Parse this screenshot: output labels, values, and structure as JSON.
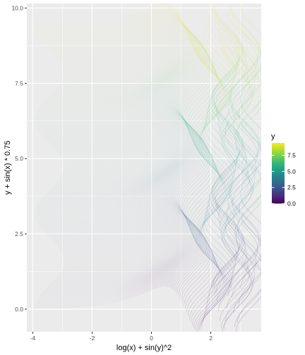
{
  "chart_data": {
    "type": "line",
    "description_of_marks": "many curves x = log(x0) + sin(y)^2 traced vertically, colored by y",
    "xlabel": "log(x) + sin(y)^2",
    "ylabel": "y + sin(x) * 0.75",
    "xlim": [
      -4.2,
      3.7
    ],
    "ylim": [
      -0.75,
      10.15
    ],
    "x_ticks": [
      -4,
      -2,
      0,
      2
    ],
    "x_tick_labels": [
      "-4",
      "-2",
      "0",
      "2"
    ],
    "y_ticks": [
      0.0,
      2.5,
      5.0,
      7.5,
      10.0
    ],
    "y_tick_labels": [
      "0.0",
      "2.5",
      "5.0",
      "7.5",
      "10.0"
    ],
    "grid": true,
    "panel_background": "#EBEBEB",
    "color_scale": {
      "name": "viridis",
      "title": "y",
      "range": [
        0,
        9.42
      ],
      "breaks": [
        0.0,
        2.5,
        5.0,
        7.5
      ],
      "break_labels": [
        "0.0",
        "2.5",
        "5.0",
        "7.5"
      ],
      "colors": [
        "#440154",
        "#482878",
        "#3E4A89",
        "#31688E",
        "#26828E",
        "#1F9E89",
        "#35B779",
        "#6DCD59",
        "#B4DE2C",
        "#FDE725"
      ]
    },
    "series_generator": {
      "x0_min": 0.02,
      "x0_max": 20,
      "count": 150,
      "y_min": 0,
      "y_max": 9.42,
      "x_formula": "log(x0) + sin(y)^2",
      "y_formula": "y + sin(x0) * 0.75"
    },
    "legend_position": "right"
  }
}
